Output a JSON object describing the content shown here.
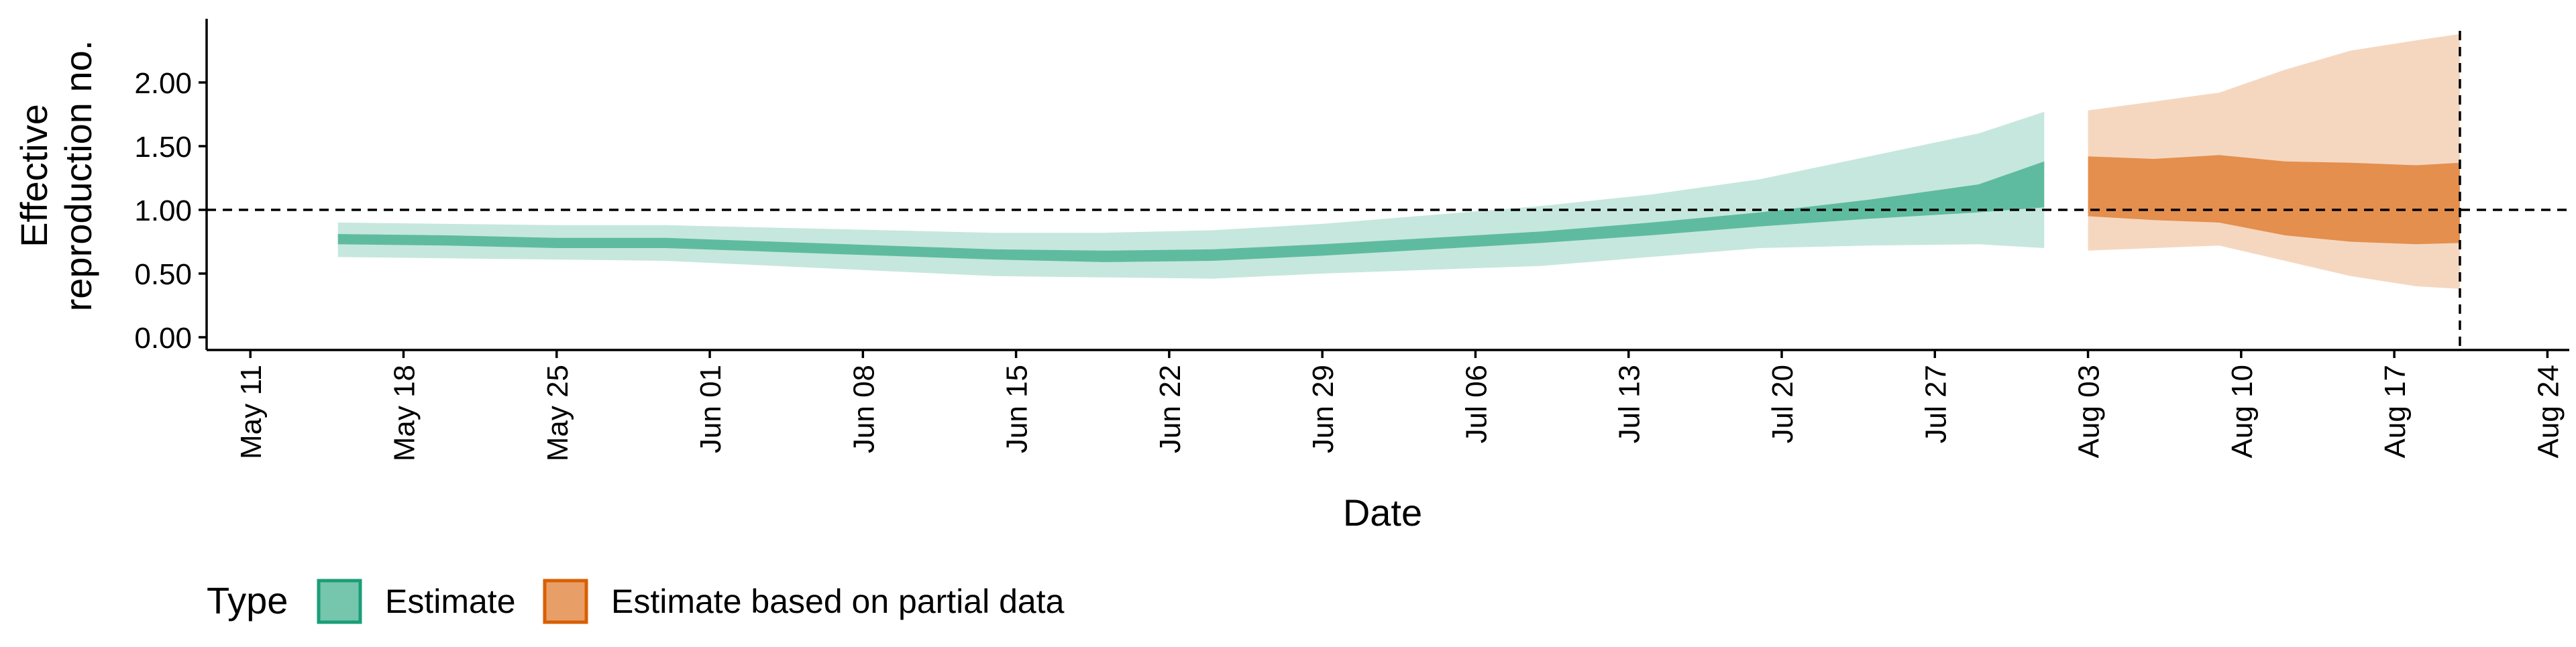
{
  "chart_data": {
    "type": "area",
    "title": "",
    "xlabel": "Date",
    "ylabel_lines": [
      "Effective",
      "reproduction no."
    ],
    "x_range": [
      "2020-05-09",
      "2020-08-25"
    ],
    "ylim": [
      -0.1,
      2.5
    ],
    "y_ticks": [
      0.0,
      0.5,
      1.0,
      1.5,
      2.0
    ],
    "y_tick_labels": [
      "0.00",
      "0.50",
      "1.00",
      "1.50",
      "2.00"
    ],
    "x_ticks": [
      "2020-05-11",
      "2020-05-18",
      "2020-05-25",
      "2020-06-01",
      "2020-06-08",
      "2020-06-15",
      "2020-06-22",
      "2020-06-29",
      "2020-07-06",
      "2020-07-13",
      "2020-07-20",
      "2020-07-27",
      "2020-08-03",
      "2020-08-10",
      "2020-08-17",
      "2020-08-24"
    ],
    "x_tick_labels": [
      "May 11",
      "May 18",
      "May 25",
      "Jun 01",
      "Jun 08",
      "Jun 15",
      "Jun 22",
      "Jun 29",
      "Jul 06",
      "Jul 13",
      "Jul 20",
      "Jul 27",
      "Aug 03",
      "Aug 10",
      "Aug 17",
      "Aug 24"
    ],
    "reference_line_y": 1.0,
    "reference_line_x": "2020-08-20",
    "grid": false,
    "legend_position": "bottom-left",
    "legend_title": "Type",
    "series": [
      {
        "name": "Estimate",
        "color": "#1b9e77",
        "points": [
          {
            "x": "2020-05-15",
            "lo90": 0.63,
            "lo50": 0.73,
            "hi50": 0.81,
            "hi90": 0.9
          },
          {
            "x": "2020-05-20",
            "lo90": 0.62,
            "lo50": 0.72,
            "hi50": 0.8,
            "hi90": 0.89
          },
          {
            "x": "2020-05-25",
            "lo90": 0.61,
            "lo50": 0.7,
            "hi50": 0.78,
            "hi90": 0.88
          },
          {
            "x": "2020-05-30",
            "lo90": 0.6,
            "lo50": 0.7,
            "hi50": 0.78,
            "hi90": 0.88
          },
          {
            "x": "2020-06-04",
            "lo90": 0.56,
            "lo50": 0.67,
            "hi50": 0.75,
            "hi90": 0.86
          },
          {
            "x": "2020-06-09",
            "lo90": 0.52,
            "lo50": 0.64,
            "hi50": 0.72,
            "hi90": 0.84
          },
          {
            "x": "2020-06-14",
            "lo90": 0.48,
            "lo50": 0.61,
            "hi50": 0.69,
            "hi90": 0.82
          },
          {
            "x": "2020-06-19",
            "lo90": 0.47,
            "lo50": 0.59,
            "hi50": 0.68,
            "hi90": 0.82
          },
          {
            "x": "2020-06-24",
            "lo90": 0.46,
            "lo50": 0.6,
            "hi50": 0.69,
            "hi90": 0.84
          },
          {
            "x": "2020-06-29",
            "lo90": 0.5,
            "lo50": 0.64,
            "hi50": 0.73,
            "hi90": 0.89
          },
          {
            "x": "2020-07-04",
            "lo90": 0.53,
            "lo50": 0.69,
            "hi50": 0.78,
            "hi90": 0.96
          },
          {
            "x": "2020-07-09",
            "lo90": 0.56,
            "lo50": 0.74,
            "hi50": 0.83,
            "hi90": 1.03
          },
          {
            "x": "2020-07-14",
            "lo90": 0.63,
            "lo50": 0.8,
            "hi50": 0.9,
            "hi90": 1.12
          },
          {
            "x": "2020-07-19",
            "lo90": 0.7,
            "lo50": 0.87,
            "hi50": 0.98,
            "hi90": 1.24
          },
          {
            "x": "2020-07-24",
            "lo90": 0.72,
            "lo50": 0.93,
            "hi50": 1.08,
            "hi90": 1.42
          },
          {
            "x": "2020-07-29",
            "lo90": 0.73,
            "lo50": 0.98,
            "hi50": 1.2,
            "hi90": 1.6
          },
          {
            "x": "2020-08-01",
            "lo90": 0.7,
            "lo50": 1.02,
            "hi50": 1.38,
            "hi90": 1.77
          }
        ]
      },
      {
        "name": "Estimate based on partial data",
        "color": "#d95f02",
        "points": [
          {
            "x": "2020-08-03",
            "lo90": 0.68,
            "lo50": 0.95,
            "hi50": 1.42,
            "hi90": 1.78
          },
          {
            "x": "2020-08-06",
            "lo90": 0.7,
            "lo50": 0.92,
            "hi50": 1.4,
            "hi90": 1.85
          },
          {
            "x": "2020-08-09",
            "lo90": 0.72,
            "lo50": 0.9,
            "hi50": 1.43,
            "hi90": 1.92
          },
          {
            "x": "2020-08-12",
            "lo90": 0.6,
            "lo50": 0.8,
            "hi50": 1.38,
            "hi90": 2.1
          },
          {
            "x": "2020-08-15",
            "lo90": 0.48,
            "lo50": 0.75,
            "hi50": 1.37,
            "hi90": 2.25
          },
          {
            "x": "2020-08-18",
            "lo90": 0.4,
            "lo50": 0.73,
            "hi50": 1.35,
            "hi90": 2.33
          },
          {
            "x": "2020-08-20",
            "lo90": 0.38,
            "lo50": 0.74,
            "hi50": 1.37,
            "hi90": 2.38
          }
        ]
      }
    ]
  }
}
